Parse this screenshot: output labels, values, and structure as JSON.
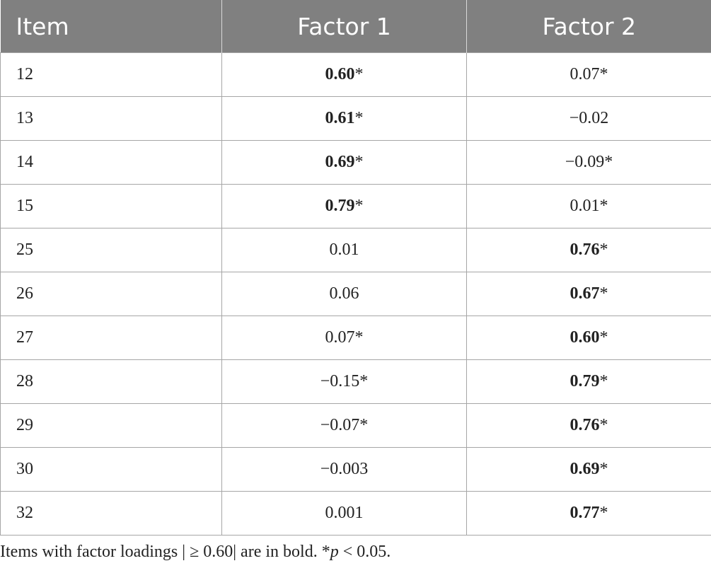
{
  "table": {
    "headers": [
      "Item",
      "Factor 1",
      "Factor 2"
    ],
    "rows": [
      {
        "item": "12",
        "f1": "0.60",
        "f1_bold": true,
        "f1_sig": "*",
        "f2": "0.07",
        "f2_bold": false,
        "f2_sig": "*"
      },
      {
        "item": "13",
        "f1": "0.61",
        "f1_bold": true,
        "f1_sig": "*",
        "f2": "−0.02",
        "f2_bold": false,
        "f2_sig": ""
      },
      {
        "item": "14",
        "f1": "0.69",
        "f1_bold": true,
        "f1_sig": "*",
        "f2": "−0.09",
        "f2_bold": false,
        "f2_sig": "*"
      },
      {
        "item": "15",
        "f1": "0.79",
        "f1_bold": true,
        "f1_sig": "*",
        "f2": "0.01",
        "f2_bold": false,
        "f2_sig": "*"
      },
      {
        "item": "25",
        "f1": "0.01",
        "f1_bold": false,
        "f1_sig": "",
        "f2": "0.76",
        "f2_bold": true,
        "f2_sig": "*"
      },
      {
        "item": "26",
        "f1": "0.06",
        "f1_bold": false,
        "f1_sig": "",
        "f2": "0.67",
        "f2_bold": true,
        "f2_sig": "*"
      },
      {
        "item": "27",
        "f1": "0.07",
        "f1_bold": false,
        "f1_sig": "*",
        "f2": "0.60",
        "f2_bold": true,
        "f2_sig": "*"
      },
      {
        "item": "28",
        "f1": "−0.15",
        "f1_bold": false,
        "f1_sig": "*",
        "f2": "0.79",
        "f2_bold": true,
        "f2_sig": "*"
      },
      {
        "item": "29",
        "f1": "−0.07",
        "f1_bold": false,
        "f1_sig": "*",
        "f2": "0.76",
        "f2_bold": true,
        "f2_sig": "*"
      },
      {
        "item": "30",
        "f1": "−0.003",
        "f1_bold": false,
        "f1_sig": "",
        "f2": "0.69",
        "f2_bold": true,
        "f2_sig": "*"
      },
      {
        "item": "32",
        "f1": "0.001",
        "f1_bold": false,
        "f1_sig": "",
        "f2": "0.77",
        "f2_bold": true,
        "f2_sig": "*"
      }
    ]
  },
  "footnote": {
    "text_before": "Items with factor loadings | ≥ 0.60| are in bold. *",
    "p_symbol": "p",
    "text_after": " < 0.05."
  }
}
